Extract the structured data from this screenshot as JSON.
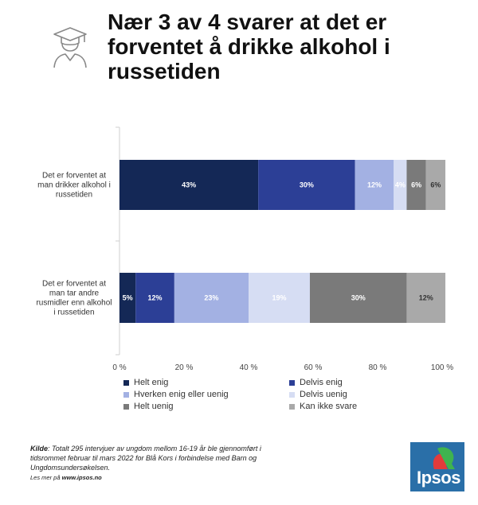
{
  "title": "Nær 3 av 4 svarer at det er forventet å drikke alkohol i russetiden",
  "icon": "student-graduate-icon",
  "chart_data": {
    "type": "bar",
    "orientation": "horizontal",
    "stacked": true,
    "categories": [
      [
        "Det er forventet at",
        "man drikker alkohol i",
        "russetiden"
      ],
      [
        "Det er forventet at",
        "man tar andre",
        "rusmidler enn alkohol",
        "i russetiden"
      ]
    ],
    "series": [
      {
        "name": "Helt enig",
        "color": "#142856",
        "label_color": "#ffffff",
        "values": [
          43,
          5
        ],
        "labels": [
          "43%",
          "5%"
        ]
      },
      {
        "name": "Delvis enig",
        "color": "#2c3f96",
        "label_color": "#ffffff",
        "values": [
          30,
          12
        ],
        "labels": [
          "30%",
          "12%"
        ]
      },
      {
        "name": "Hverken enig eller uenig",
        "color": "#a3b1e3",
        "label_color": "#ffffff",
        "values": [
          12,
          23
        ],
        "labels": [
          "12%",
          "23%"
        ]
      },
      {
        "name": "Delvis uenig",
        "color": "#d6ddf3",
        "label_color": "#ffffff",
        "values": [
          4,
          19
        ],
        "labels": [
          "4%",
          "19%"
        ]
      },
      {
        "name": "Helt uenig",
        "color": "#7a7a7a",
        "label_color": "#ffffff",
        "values": [
          6,
          30
        ],
        "labels": [
          "6%",
          "30%"
        ]
      },
      {
        "name": "Kan ikke svare",
        "color": "#a9a9a9",
        "label_color": "#333333",
        "values": [
          6,
          12
        ],
        "labels": [
          "6%",
          "12%"
        ]
      }
    ],
    "xlim": [
      0,
      100
    ],
    "xticks": [
      0,
      20,
      40,
      60,
      80,
      100
    ],
    "xtick_labels": [
      "0 %",
      "20 %",
      "40 %",
      "60 %",
      "80 %",
      "100 %"
    ],
    "grid": false,
    "legend_position": "bottom"
  },
  "source": {
    "label": "Kilde",
    "text": ": Totalt 295 intervjuer av ungdom mellom 16-19 år ble gjennomført i tidsrommet februar til mars 2022 for Blå Kors i forbindelse med Barn og Ungdomsundersøkelsen.",
    "more_prefix": "Les mer på ",
    "more_link": "www.ipsos.no"
  },
  "logo": {
    "text": "Ipsos",
    "color": "#2a6fa8"
  }
}
